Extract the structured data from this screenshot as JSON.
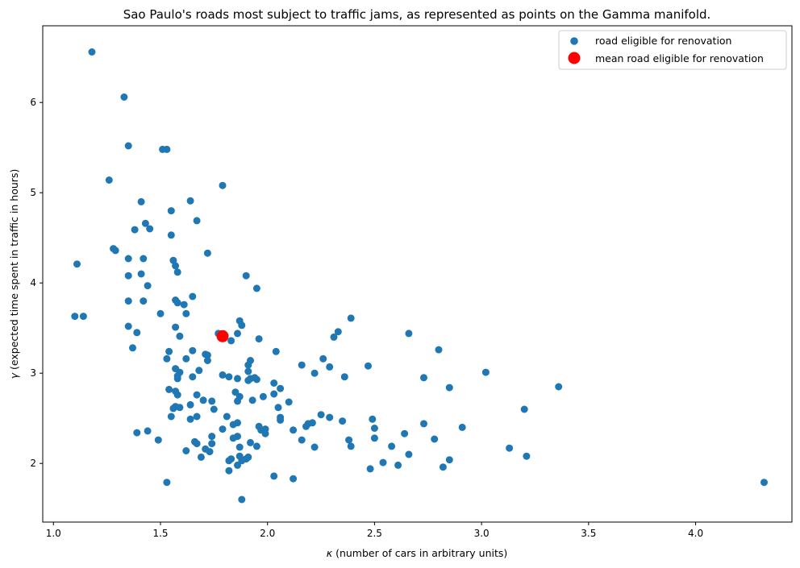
{
  "chart_data": {
    "type": "scatter",
    "title": "Sao Paulo's roads most subject to traffic jams, as represented as points on the Gamma manifold.",
    "xlabel_symbol": "κ",
    "xlabel_text": " (number of cars in arbitrary units)",
    "ylabel_symbol": "γ",
    "ylabel_text": " (expected time spent in traffic in hours)",
    "xlim": [
      0.95,
      4.45
    ],
    "ylim": [
      1.35,
      6.85
    ],
    "xticks": [
      1.0,
      1.5,
      2.0,
      2.5,
      3.0,
      3.5,
      4.0
    ],
    "xtick_labels": [
      "1.0",
      "1.5",
      "2.0",
      "2.5",
      "3.0",
      "3.5",
      "4.0"
    ],
    "yticks": [
      2,
      3,
      4,
      5,
      6
    ],
    "ytick_labels": [
      "2",
      "3",
      "4",
      "5",
      "6"
    ],
    "legend_position": "top-right",
    "series": [
      {
        "name": "road eligible for renovation",
        "color": "#1f77b4",
        "marker": "circle",
        "points": [
          [
            1.18,
            6.56
          ],
          [
            1.33,
            6.06
          ],
          [
            1.35,
            5.52
          ],
          [
            1.51,
            5.48
          ],
          [
            1.53,
            5.48
          ],
          [
            1.26,
            5.14
          ],
          [
            1.79,
            5.08
          ],
          [
            1.41,
            4.9
          ],
          [
            1.64,
            4.91
          ],
          [
            1.55,
            4.8
          ],
          [
            1.67,
            4.69
          ],
          [
            1.43,
            4.66
          ],
          [
            1.45,
            4.6
          ],
          [
            1.38,
            4.59
          ],
          [
            1.55,
            4.53
          ],
          [
            1.28,
            4.38
          ],
          [
            1.29,
            4.36
          ],
          [
            1.72,
            4.33
          ],
          [
            1.35,
            4.27
          ],
          [
            1.42,
            4.27
          ],
          [
            1.11,
            4.21
          ],
          [
            1.56,
            4.25
          ],
          [
            1.57,
            4.19
          ],
          [
            1.58,
            4.12
          ],
          [
            1.41,
            4.1
          ],
          [
            1.35,
            4.08
          ],
          [
            1.9,
            4.08
          ],
          [
            1.44,
            3.97
          ],
          [
            1.95,
            3.94
          ],
          [
            1.65,
            3.85
          ],
          [
            1.35,
            3.8
          ],
          [
            1.42,
            3.8
          ],
          [
            1.57,
            3.81
          ],
          [
            1.58,
            3.78
          ],
          [
            1.61,
            3.76
          ],
          [
            1.62,
            3.66
          ],
          [
            1.5,
            3.66
          ],
          [
            1.1,
            3.63
          ],
          [
            1.14,
            3.63
          ],
          [
            2.39,
            3.61
          ],
          [
            1.87,
            3.58
          ],
          [
            1.88,
            3.53
          ],
          [
            1.35,
            3.52
          ],
          [
            1.57,
            3.51
          ],
          [
            2.33,
            3.46
          ],
          [
            2.66,
            3.44
          ],
          [
            1.39,
            3.45
          ],
          [
            1.77,
            3.44
          ],
          [
            1.86,
            3.44
          ],
          [
            1.59,
            3.41
          ],
          [
            2.31,
            3.4
          ],
          [
            1.96,
            3.38
          ],
          [
            1.83,
            3.36
          ],
          [
            1.37,
            3.28
          ],
          [
            2.8,
            3.26
          ],
          [
            2.04,
            3.24
          ],
          [
            1.54,
            3.24
          ],
          [
            1.65,
            3.25
          ],
          [
            1.71,
            3.21
          ],
          [
            1.72,
            3.2
          ],
          [
            2.26,
            3.16
          ],
          [
            1.53,
            3.16
          ],
          [
            1.62,
            3.16
          ],
          [
            1.92,
            3.14
          ],
          [
            2.16,
            3.09
          ],
          [
            1.91,
            3.09
          ],
          [
            2.47,
            3.08
          ],
          [
            1.72,
            3.14
          ],
          [
            1.57,
            3.05
          ],
          [
            1.68,
            3.03
          ],
          [
            2.29,
            3.07
          ],
          [
            1.91,
            3.02
          ],
          [
            3.02,
            3.01
          ],
          [
            2.22,
            3.0
          ],
          [
            1.59,
            3.01
          ],
          [
            1.58,
            2.97
          ],
          [
            1.58,
            2.94
          ],
          [
            1.79,
            2.98
          ],
          [
            1.82,
            2.96
          ],
          [
            1.86,
            2.94
          ],
          [
            1.65,
            2.96
          ],
          [
            2.36,
            2.96
          ],
          [
            2.73,
            2.95
          ],
          [
            1.95,
            2.93
          ],
          [
            1.94,
            2.95
          ],
          [
            1.92,
            2.94
          ],
          [
            1.91,
            2.92
          ],
          [
            2.03,
            2.89
          ],
          [
            2.85,
            2.84
          ],
          [
            3.36,
            2.85
          ],
          [
            2.06,
            2.83
          ],
          [
            1.54,
            2.82
          ],
          [
            1.57,
            2.8
          ],
          [
            1.85,
            2.79
          ],
          [
            1.58,
            2.76
          ],
          [
            1.67,
            2.76
          ],
          [
            1.87,
            2.74
          ],
          [
            1.98,
            2.74
          ],
          [
            2.03,
            2.77
          ],
          [
            1.7,
            2.7
          ],
          [
            1.74,
            2.69
          ],
          [
            1.86,
            2.69
          ],
          [
            1.93,
            2.7
          ],
          [
            2.1,
            2.68
          ],
          [
            1.64,
            2.65
          ],
          [
            1.57,
            2.63
          ],
          [
            1.56,
            2.61
          ],
          [
            1.59,
            2.62
          ],
          [
            1.75,
            2.6
          ],
          [
            2.05,
            2.62
          ],
          [
            3.2,
            2.6
          ],
          [
            1.67,
            2.52
          ],
          [
            1.55,
            2.52
          ],
          [
            1.64,
            2.49
          ],
          [
            1.81,
            2.52
          ],
          [
            2.25,
            2.54
          ],
          [
            2.29,
            2.51
          ],
          [
            2.06,
            2.51
          ],
          [
            2.06,
            2.48
          ],
          [
            2.49,
            2.49
          ],
          [
            1.84,
            2.43
          ],
          [
            1.86,
            2.45
          ],
          [
            1.96,
            2.41
          ],
          [
            2.35,
            2.47
          ],
          [
            2.19,
            2.44
          ],
          [
            2.21,
            2.45
          ],
          [
            2.18,
            2.41
          ],
          [
            2.12,
            2.37
          ],
          [
            1.79,
            2.38
          ],
          [
            1.97,
            2.37
          ],
          [
            1.99,
            2.33
          ],
          [
            1.99,
            2.38
          ],
          [
            2.73,
            2.44
          ],
          [
            2.91,
            2.4
          ],
          [
            2.5,
            2.39
          ],
          [
            1.44,
            2.36
          ],
          [
            1.39,
            2.34
          ],
          [
            1.74,
            2.3
          ],
          [
            1.86,
            2.3
          ],
          [
            1.84,
            2.28
          ],
          [
            2.5,
            2.28
          ],
          [
            2.64,
            2.33
          ],
          [
            2.78,
            2.27
          ],
          [
            2.38,
            2.26
          ],
          [
            2.16,
            2.26
          ],
          [
            1.49,
            2.26
          ],
          [
            1.66,
            2.24
          ],
          [
            1.67,
            2.22
          ],
          [
            1.92,
            2.23
          ],
          [
            1.74,
            2.22
          ],
          [
            1.95,
            2.19
          ],
          [
            2.22,
            2.18
          ],
          [
            2.58,
            2.19
          ],
          [
            2.39,
            2.19
          ],
          [
            1.87,
            2.18
          ],
          [
            1.71,
            2.16
          ],
          [
            1.62,
            2.14
          ],
          [
            1.73,
            2.13
          ],
          [
            3.13,
            2.17
          ],
          [
            2.66,
            2.1
          ],
          [
            1.87,
            2.08
          ],
          [
            1.69,
            2.07
          ],
          [
            1.91,
            2.07
          ],
          [
            1.9,
            2.05
          ],
          [
            1.83,
            2.05
          ],
          [
            1.88,
            2.03
          ],
          [
            1.82,
            2.03
          ],
          [
            3.21,
            2.08
          ],
          [
            2.85,
            2.04
          ],
          [
            2.54,
            2.01
          ],
          [
            2.61,
            1.98
          ],
          [
            1.86,
            1.98
          ],
          [
            2.82,
            1.96
          ],
          [
            1.82,
            1.92
          ],
          [
            2.48,
            1.94
          ],
          [
            2.03,
            1.86
          ],
          [
            2.12,
            1.83
          ],
          [
            1.53,
            1.79
          ],
          [
            4.32,
            1.79
          ],
          [
            1.88,
            1.6
          ]
        ]
      },
      {
        "name": "mean road eligible for renovation",
        "color": "#ff0000",
        "marker": "circle",
        "points": [
          [
            1.79,
            3.41
          ]
        ]
      }
    ]
  }
}
